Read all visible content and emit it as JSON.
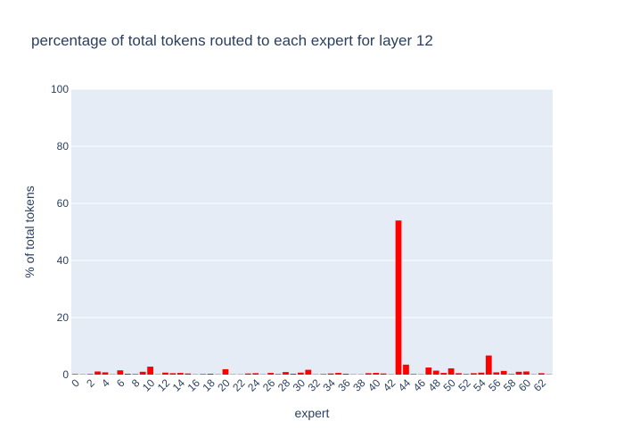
{
  "chart_data": {
    "type": "bar",
    "title": "percentage of total tokens routed to each expert for layer 12",
    "xlabel": "expert",
    "ylabel": "% of total tokens",
    "ylim": [
      0,
      100
    ],
    "yticks": [
      0,
      20,
      40,
      60,
      80,
      100
    ],
    "xticks": [
      0,
      2,
      4,
      6,
      8,
      10,
      12,
      14,
      16,
      18,
      20,
      22,
      24,
      26,
      28,
      30,
      32,
      34,
      36,
      38,
      40,
      42,
      44,
      46,
      48,
      50,
      52,
      54,
      56,
      58,
      60,
      62
    ],
    "grid": true,
    "legend": "none",
    "bar_color": "#ff0000",
    "plot_bg": "#e5ecf6",
    "categories": [
      0,
      1,
      2,
      3,
      4,
      5,
      6,
      7,
      8,
      9,
      10,
      11,
      12,
      13,
      14,
      15,
      16,
      17,
      18,
      19,
      20,
      21,
      22,
      23,
      24,
      25,
      26,
      27,
      28,
      29,
      30,
      31,
      32,
      33,
      34,
      35,
      36,
      37,
      38,
      39,
      40,
      41,
      42,
      43,
      44,
      45,
      46,
      47,
      48,
      49,
      50,
      51,
      52,
      53,
      54,
      55,
      56,
      57,
      58,
      59,
      60,
      61,
      62,
      63
    ],
    "values": [
      0.2,
      0.1,
      0.2,
      1.1,
      0.8,
      0.1,
      1.5,
      0.3,
      0.2,
      1.0,
      2.8,
      0.1,
      0.7,
      0.5,
      0.6,
      0.4,
      0.1,
      0.2,
      0.3,
      0.1,
      1.9,
      0.1,
      0.1,
      0.4,
      0.5,
      0.1,
      0.6,
      0.2,
      0.9,
      0.3,
      0.7,
      1.7,
      0.1,
      0.2,
      0.4,
      0.6,
      0.3,
      0.1,
      0.1,
      0.5,
      0.6,
      0.4,
      0.1,
      54.0,
      3.5,
      0.2,
      0.1,
      2.5,
      1.4,
      0.6,
      2.2,
      0.5,
      0.2,
      0.5,
      0.7,
      6.7,
      0.8,
      1.3,
      0.2,
      1.0,
      1.1,
      0.1,
      0.5,
      0.1
    ]
  }
}
